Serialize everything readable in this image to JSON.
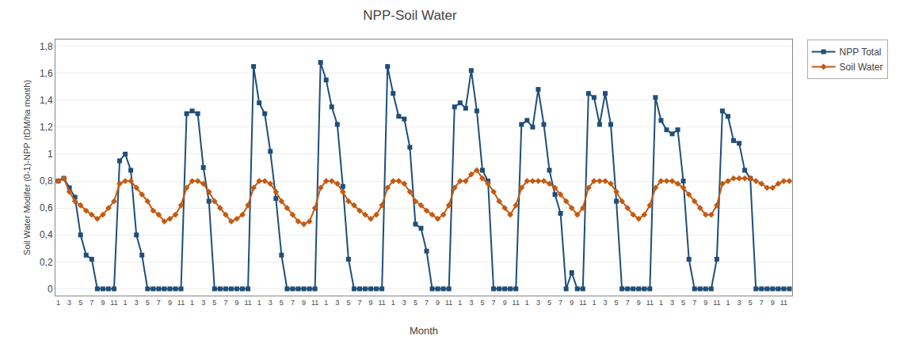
{
  "chart_data": {
    "type": "line",
    "title": "NPP-Soil Water",
    "x_label": "Month",
    "y_label": "Soil Water Modifer (0-1)-NPP (tDM/ha month)",
    "categories": [
      "1",
      null,
      "3",
      null,
      "5",
      null,
      "7",
      null,
      "9",
      null,
      "11",
      null,
      "1",
      null,
      "3",
      null,
      "5",
      null,
      "7",
      null,
      "9",
      null,
      "11",
      null,
      "1",
      null,
      "3",
      null,
      "5",
      null,
      "7",
      null,
      "9",
      null,
      "11",
      null,
      "1",
      null,
      "3",
      null,
      "5",
      null,
      "7",
      null,
      "9",
      null,
      "11",
      null,
      "1",
      null,
      "3",
      null,
      "5",
      null,
      "7",
      null,
      "9",
      null,
      "11",
      null,
      "1",
      null,
      "3",
      null,
      "5",
      null,
      "7",
      null,
      "9",
      null,
      "11",
      null,
      "1",
      null,
      "3",
      null,
      "5",
      null,
      "7",
      null,
      "9",
      null,
      "11",
      null,
      "1",
      null,
      "3",
      null,
      "5",
      null,
      "7",
      null,
      "9",
      null,
      "11",
      null,
      "1",
      null,
      "3",
      null,
      "5",
      null,
      "7",
      null,
      "9",
      null,
      "11",
      null,
      "1",
      null,
      "3",
      null,
      "5",
      null,
      "7",
      null,
      "9",
      null,
      "11",
      null,
      "1",
      null,
      "3",
      null,
      "5",
      null,
      "7",
      null,
      "9",
      null,
      "11",
      null
    ],
    "series": [
      {
        "name": "NPP Total",
        "color": "#1F4E79",
        "marker": "square",
        "values": [
          0.8,
          0.82,
          0.75,
          0.68,
          0.4,
          0.25,
          0.22,
          0.0,
          0.0,
          0.0,
          0.0,
          0.95,
          1.0,
          0.88,
          0.4,
          0.25,
          0.0,
          0.0,
          0.0,
          0.0,
          0.0,
          0.0,
          0.0,
          1.3,
          1.32,
          1.3,
          0.9,
          0.65,
          0.0,
          0.0,
          0.0,
          0.0,
          0.0,
          0.0,
          0.0,
          1.65,
          1.38,
          1.3,
          1.02,
          0.67,
          0.25,
          0.0,
          0.0,
          0.0,
          0.0,
          0.0,
          0.0,
          1.68,
          1.55,
          1.35,
          1.22,
          0.76,
          0.22,
          0.0,
          0.0,
          0.0,
          0.0,
          0.0,
          0.0,
          1.65,
          1.45,
          1.28,
          1.26,
          1.05,
          0.48,
          0.45,
          0.28,
          0.0,
          0.0,
          0.0,
          0.0,
          1.35,
          1.38,
          1.34,
          1.62,
          1.32,
          0.88,
          0.8,
          0.0,
          0.0,
          0.0,
          0.0,
          0.0,
          1.22,
          1.25,
          1.2,
          1.48,
          1.22,
          0.88,
          0.7,
          0.56,
          0.0,
          0.12,
          0.0,
          0.0,
          1.45,
          1.42,
          1.22,
          1.45,
          1.22,
          0.65,
          0.0,
          0.0,
          0.0,
          0.0,
          0.0,
          0.0,
          1.42,
          1.25,
          1.18,
          1.15,
          1.18,
          0.8,
          0.22,
          0.0,
          0.0,
          0.0,
          0.0,
          0.22,
          1.32,
          1.28,
          1.1,
          1.08,
          0.88,
          0.82,
          0.0,
          0.0,
          0.0,
          0.0,
          0.0,
          0.0,
          0.0
        ]
      },
      {
        "name": "Soil Water",
        "color": "#C55A11",
        "marker": "diamond",
        "values": [
          0.8,
          0.82,
          0.72,
          0.65,
          0.62,
          0.58,
          0.55,
          0.52,
          0.55,
          0.6,
          0.65,
          0.78,
          0.8,
          0.8,
          0.75,
          0.7,
          0.65,
          0.58,
          0.55,
          0.5,
          0.52,
          0.55,
          0.62,
          0.75,
          0.8,
          0.8,
          0.78,
          0.72,
          0.65,
          0.6,
          0.55,
          0.5,
          0.52,
          0.55,
          0.62,
          0.75,
          0.8,
          0.8,
          0.78,
          0.72,
          0.65,
          0.6,
          0.55,
          0.5,
          0.48,
          0.5,
          0.6,
          0.75,
          0.8,
          0.8,
          0.78,
          0.72,
          0.65,
          0.62,
          0.58,
          0.55,
          0.52,
          0.55,
          0.62,
          0.75,
          0.8,
          0.8,
          0.78,
          0.72,
          0.65,
          0.62,
          0.58,
          0.55,
          0.52,
          0.55,
          0.62,
          0.75,
          0.8,
          0.8,
          0.85,
          0.88,
          0.82,
          0.78,
          0.72,
          0.65,
          0.6,
          0.55,
          0.62,
          0.75,
          0.8,
          0.8,
          0.8,
          0.8,
          0.78,
          0.75,
          0.7,
          0.65,
          0.6,
          0.55,
          0.6,
          0.75,
          0.8,
          0.8,
          0.8,
          0.78,
          0.72,
          0.65,
          0.6,
          0.55,
          0.52,
          0.55,
          0.62,
          0.75,
          0.8,
          0.8,
          0.8,
          0.78,
          0.75,
          0.7,
          0.65,
          0.6,
          0.55,
          0.55,
          0.62,
          0.78,
          0.8,
          0.82,
          0.82,
          0.82,
          0.82,
          0.8,
          0.78,
          0.75,
          0.75,
          0.78,
          0.8,
          0.8
        ]
      }
    ],
    "ylim": [
      -0.05,
      1.85
    ],
    "yticks": [
      0,
      {
        "value": 0.2,
        "label": "0,2"
      },
      {
        "value": 0.4,
        "label": "0,4"
      },
      {
        "value": 0.6,
        "label": "0,6"
      },
      {
        "value": 0.8,
        "label": "0,8"
      },
      1,
      {
        "value": 1.2,
        "label": "1,2"
      },
      {
        "value": 1.4,
        "label": "1,4"
      },
      {
        "value": 1.6,
        "label": "1,6"
      },
      {
        "value": 1.8,
        "label": "1,8"
      }
    ],
    "grid": "y",
    "legend": "right"
  }
}
